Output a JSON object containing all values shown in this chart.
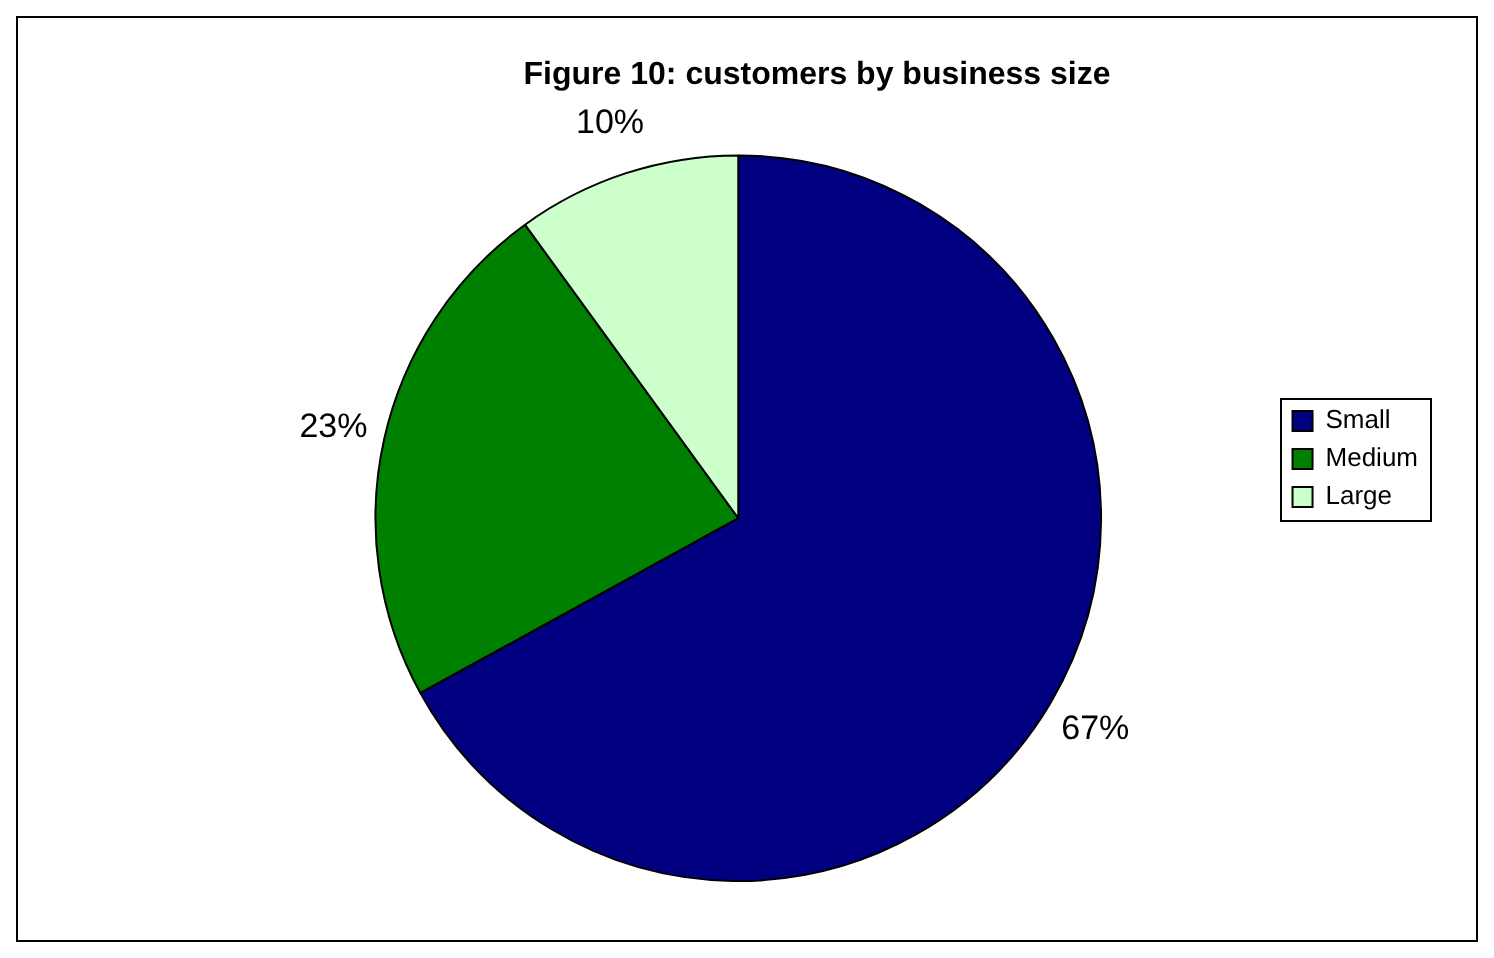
{
  "chart_data": {
    "type": "pie",
    "title": "Figure 10: customers by business size",
    "categories": [
      "Small",
      "Medium",
      "Large"
    ],
    "values": [
      67,
      23,
      10
    ],
    "colors": [
      "#000080",
      "#008000",
      "#ccffcc"
    ],
    "value_labels": [
      "67%",
      "23%",
      "10%"
    ],
    "legend": "right"
  }
}
